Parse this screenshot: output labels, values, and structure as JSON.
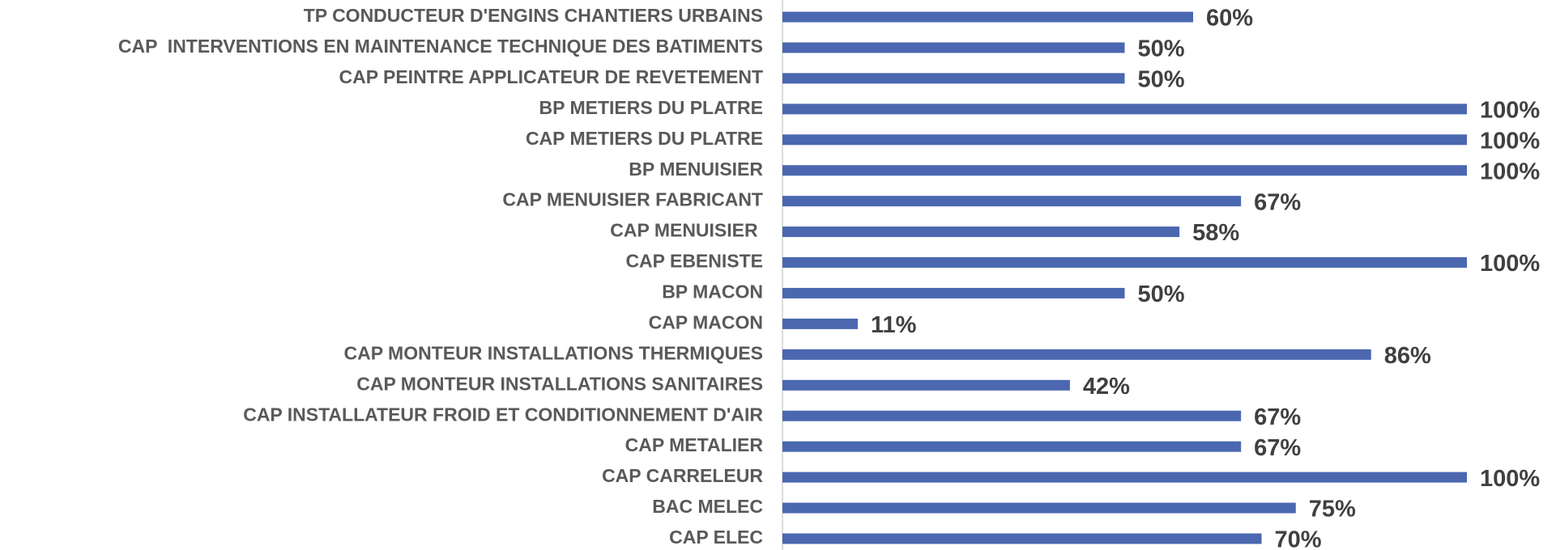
{
  "chart_data": {
    "type": "barh",
    "categories": [
      "TP CONDUCTEUR D'ENGINS CHANTIERS URBAINS",
      "CAP  INTERVENTIONS EN MAINTENANCE TECHNIQUE DES BATIMENTS",
      "CAP PEINTRE APPLICATEUR DE REVETEMENT",
      "BP METIERS DU PLATRE",
      "CAP METIERS DU PLATRE",
      "BP MENUISIER",
      "CAP MENUISIER FABRICANT",
      "CAP MENUISIER ",
      "CAP EBENISTE",
      "BP MACON",
      "CAP MACON",
      "CAP MONTEUR INSTALLATIONS THERMIQUES",
      "CAP MONTEUR INSTALLATIONS SANITAIRES",
      "CAP INSTALLATEUR FROID ET CONDITIONNEMENT D'AIR",
      "CAP METALIER",
      "CAP CARRELEUR",
      "BAC MELEC",
      "CAP ELEC"
    ],
    "values": [
      60,
      50,
      50,
      100,
      100,
      100,
      67,
      58,
      100,
      50,
      11,
      86,
      42,
      67,
      67,
      100,
      75,
      70
    ],
    "value_labels": [
      "60%",
      "50%",
      "50%",
      "100%",
      "100%",
      "100%",
      "67%",
      "58%",
      "100%",
      "50%",
      "11%",
      "86%",
      "42%",
      "67%",
      "67%",
      "100%",
      "75%",
      "70%"
    ],
    "color": "#4a67b0",
    "xlim": [
      0,
      100
    ]
  }
}
